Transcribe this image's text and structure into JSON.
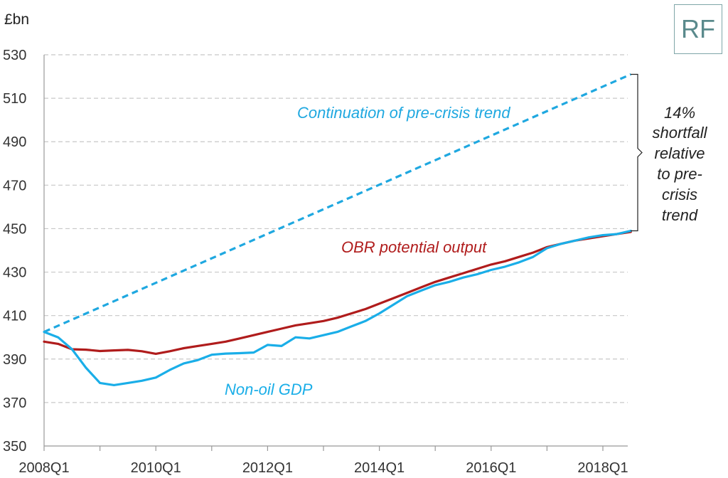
{
  "logo": {
    "text": "RF"
  },
  "chart_data": {
    "type": "line",
    "ylabel": "£bn",
    "ylim": [
      350,
      530
    ],
    "yticks": [
      350,
      370,
      390,
      410,
      430,
      450,
      470,
      490,
      510,
      530
    ],
    "xlim": [
      0,
      41
    ],
    "xtick_labels": [
      {
        "label": "2008Q1",
        "x": 0
      },
      {
        "label": "2010Q1",
        "x": 8
      },
      {
        "label": "2012Q1",
        "x": 16
      },
      {
        "label": "2014Q1",
        "x": 24
      },
      {
        "label": "2016Q1",
        "x": 32
      },
      {
        "label": "2018Q1",
        "x": 40
      }
    ],
    "grid": "horizontal dashed",
    "series": [
      {
        "name": "Continuation of pre-crisis trend",
        "color": "#1fa8e0",
        "style": "dashed",
        "points": [
          [
            0,
            402.5
          ],
          [
            42,
            521
          ]
        ]
      },
      {
        "name": "OBR potential output",
        "color": "#b01c1c",
        "style": "solid",
        "points": [
          [
            0,
            398
          ],
          [
            1,
            397
          ],
          [
            2,
            394.5
          ],
          [
            3,
            394.3
          ],
          [
            4,
            393.7
          ],
          [
            5,
            394
          ],
          [
            6,
            394.2
          ],
          [
            7,
            393.6
          ],
          [
            8,
            392.4
          ],
          [
            9,
            393.6
          ],
          [
            10,
            395
          ],
          [
            11,
            396
          ],
          [
            12,
            397
          ],
          [
            13,
            398
          ],
          [
            14,
            399.5
          ],
          [
            15,
            401
          ],
          [
            16,
            402.5
          ],
          [
            17,
            404
          ],
          [
            18,
            405.5
          ],
          [
            19,
            406.5
          ],
          [
            20,
            407.5
          ],
          [
            21,
            409
          ],
          [
            22,
            411
          ],
          [
            23,
            413
          ],
          [
            24,
            415.5
          ],
          [
            25,
            418
          ],
          [
            26,
            420.5
          ],
          [
            27,
            423
          ],
          [
            28,
            425.5
          ],
          [
            29,
            427.5
          ],
          [
            30,
            429.5
          ],
          [
            31,
            431.5
          ],
          [
            32,
            433.5
          ],
          [
            33,
            435
          ],
          [
            34,
            437
          ],
          [
            35,
            439
          ],
          [
            36,
            441.5
          ],
          [
            37,
            443
          ],
          [
            38,
            444.5
          ],
          [
            39,
            445.5
          ],
          [
            40,
            446.5
          ],
          [
            41,
            447.5
          ],
          [
            42,
            448.5
          ]
        ]
      },
      {
        "name": "Non-oil GDP",
        "color": "#1aaee8",
        "style": "solid",
        "points": [
          [
            0,
            402.5
          ],
          [
            1,
            400
          ],
          [
            2,
            394.5
          ],
          [
            3,
            386
          ],
          [
            4,
            379
          ],
          [
            5,
            378
          ],
          [
            6,
            379
          ],
          [
            7,
            380
          ],
          [
            8,
            381.5
          ],
          [
            9,
            385
          ],
          [
            10,
            388
          ],
          [
            11,
            389.5
          ],
          [
            12,
            392
          ],
          [
            13,
            392.5
          ],
          [
            14,
            392.7
          ],
          [
            15,
            393
          ],
          [
            16,
            396.5
          ],
          [
            17,
            396
          ],
          [
            18,
            400
          ],
          [
            19,
            399.5
          ],
          [
            20,
            401
          ],
          [
            21,
            402.5
          ],
          [
            22,
            405
          ],
          [
            23,
            407.5
          ],
          [
            24,
            411
          ],
          [
            25,
            415
          ],
          [
            26,
            419
          ],
          [
            27,
            421.5
          ],
          [
            28,
            424
          ],
          [
            29,
            425.5
          ],
          [
            30,
            427.5
          ],
          [
            31,
            429
          ],
          [
            32,
            431
          ],
          [
            33,
            432.5
          ],
          [
            34,
            434.5
          ],
          [
            35,
            437
          ],
          [
            36,
            441
          ],
          [
            37,
            443
          ],
          [
            38,
            444.5
          ],
          [
            39,
            446
          ],
          [
            40,
            447
          ],
          [
            41,
            447.5
          ],
          [
            42,
            449
          ]
        ]
      }
    ],
    "annotations": [
      {
        "text": "Continuation of pre-crisis trend",
        "color": "#1fa8e0"
      },
      {
        "text": "OBR potential output",
        "color": "#b01c1c"
      },
      {
        "text": "Non-oil GDP",
        "color": "#1aaee8"
      },
      {
        "text": "14% shortfall relative to pre-crisis trend",
        "lines": [
          "14%",
          "shortfall",
          "relative",
          "to pre-",
          "crisis",
          "trend"
        ],
        "color": "#222222"
      }
    ]
  }
}
